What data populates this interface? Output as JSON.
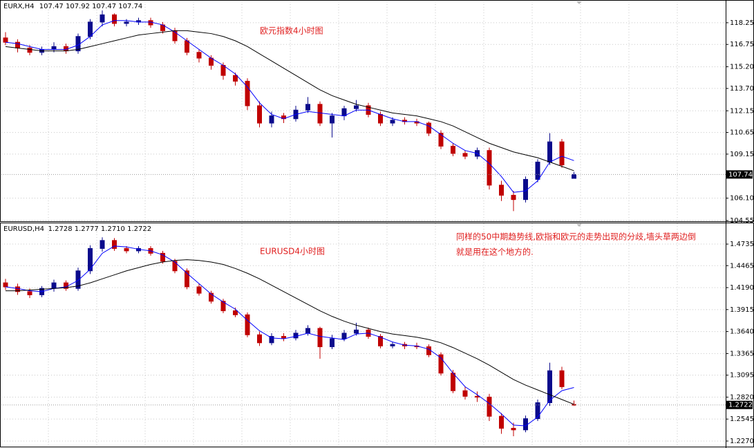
{
  "chart_data": [
    {
      "type": "candlestick",
      "title": "EURX,H4",
      "ohlc": "107.47 107.92 107.47 107.74",
      "up_color": "#0a0a8c",
      "down_color": "#c00000",
      "grid": true,
      "annotations": [
        "欧元指数4小时图"
      ],
      "last_price": 107.74,
      "ylim": [
        104.5,
        119.73
      ],
      "yticks": [
        118.25,
        116.75,
        {
          "value": 115.2,
          "label": "115.20"
        },
        {
          "value": 113.7,
          "label": "113.70"
        },
        112.15,
        110.65,
        109.15,
        {
          "value": 106.1,
          "label": "106.10"
        },
        104.55
      ],
      "open": [
        117.2,
        116.9,
        116.5,
        116.2,
        116.4,
        116.6,
        116.3,
        117.3,
        118.3,
        118.8,
        118.2,
        118.3,
        118.4,
        118.1,
        117.7,
        117.0,
        116.2,
        115.8,
        115.3,
        114.6,
        114.2,
        112.5,
        111.3,
        111.8,
        111.6,
        112.2,
        112.6,
        111.3,
        111.8,
        112.3,
        112.5,
        111.9,
        111.3,
        111.5,
        111.4,
        111.3,
        110.6,
        109.7,
        109.2,
        109.0,
        109.4,
        107.0,
        106.3,
        106.0,
        107.4,
        108.6,
        110.0,
        107.47
      ],
      "high": [
        117.6,
        117.1,
        116.7,
        116.6,
        116.9,
        116.8,
        117.5,
        118.5,
        119.1,
        118.9,
        118.5,
        118.6,
        118.6,
        118.3,
        117.9,
        117.2,
        116.4,
        116.0,
        115.5,
        114.8,
        114.4,
        112.8,
        112.1,
        112.0,
        112.5,
        113.1,
        112.8,
        112.0,
        112.5,
        112.9,
        112.7,
        112.1,
        111.7,
        111.7,
        111.6,
        111.4,
        110.8,
        109.9,
        109.4,
        109.6,
        109.6,
        107.3,
        106.6,
        107.6,
        108.8,
        110.6,
        110.2,
        107.92
      ],
      "low": [
        116.7,
        116.2,
        116.0,
        116.0,
        116.2,
        116.1,
        116.1,
        117.1,
        118.0,
        118.0,
        118.0,
        118.1,
        117.9,
        117.5,
        116.8,
        116.0,
        115.5,
        115.0,
        114.3,
        113.9,
        112.2,
        111.0,
        111.0,
        111.3,
        111.4,
        112.0,
        111.1,
        110.3,
        111.5,
        112.1,
        111.7,
        111.1,
        111.1,
        111.2,
        111.1,
        110.4,
        109.5,
        109.0,
        108.8,
        108.8,
        106.7,
        105.9,
        105.2,
        105.8,
        107.2,
        108.4,
        108.2,
        107.47
      ],
      "close": [
        116.9,
        116.5,
        116.2,
        116.4,
        116.6,
        116.3,
        117.3,
        118.3,
        118.8,
        118.2,
        118.3,
        118.4,
        118.1,
        117.7,
        117.0,
        116.2,
        115.8,
        115.3,
        114.6,
        114.2,
        112.5,
        111.3,
        111.8,
        111.6,
        112.2,
        112.6,
        111.3,
        111.8,
        112.3,
        112.5,
        111.9,
        111.3,
        111.5,
        111.4,
        111.3,
        110.6,
        109.7,
        109.2,
        109.0,
        109.4,
        107.0,
        106.3,
        106.0,
        107.4,
        108.6,
        110.0,
        108.4,
        107.74
      ],
      "series": [
        {
          "color": "#0000ff",
          "values": [
            116.9,
            116.8,
            116.6,
            116.4,
            116.4,
            116.4,
            116.7,
            117.3,
            118.1,
            118.4,
            118.4,
            118.3,
            118.3,
            118.1,
            117.6,
            117.0,
            116.4,
            115.8,
            115.3,
            114.7,
            113.8,
            112.7,
            111.9,
            111.6,
            111.9,
            112.1,
            112.0,
            111.9,
            111.8,
            112.2,
            112.2,
            111.9,
            111.6,
            111.4,
            111.4,
            111.1,
            110.5,
            109.9,
            109.4,
            109.2,
            108.5,
            107.6,
            106.5,
            106.6,
            107.3,
            108.6,
            109.0,
            108.7
          ]
        },
        {
          "color": "#000000",
          "values": [
            116.6,
            116.5,
            116.4,
            116.3,
            116.3,
            116.3,
            116.4,
            116.6,
            116.8,
            117.0,
            117.2,
            117.4,
            117.5,
            117.6,
            117.7,
            117.7,
            117.6,
            117.5,
            117.3,
            117.0,
            116.6,
            116.1,
            115.6,
            115.1,
            114.6,
            114.1,
            113.6,
            113.2,
            112.9,
            112.6,
            112.4,
            112.2,
            112.0,
            111.9,
            111.8,
            111.6,
            111.4,
            111.1,
            110.7,
            110.3,
            109.9,
            109.6,
            109.3,
            109.1,
            108.9,
            108.6,
            108.3,
            108.0
          ]
        }
      ]
    },
    {
      "type": "candlestick",
      "title": "EURUSD,H4",
      "ohlc": "1.2728 1.2777 1.2710 1.2722",
      "up_color": "#0a0a8c",
      "down_color": "#c00000",
      "grid": true,
      "annotations": [
        "EURUSD4小时图",
        "同样的50中期趋势线,欧指和欧元的走势出现的分歧,墙头草两边倒",
        "就是用在这个地方的."
      ],
      "last_price": 1.2722,
      "ylim": [
        1.2209,
        1.4995
      ],
      "yticks": [
        1.4735,
        1.4465,
        {
          "value": 1.419,
          "label": "1.4190"
        },
        1.3915,
        {
          "value": 1.364,
          "label": "1.3640"
        },
        1.3365,
        1.3095,
        {
          "value": 1.282,
          "label": "1.2820"
        },
        1.2545,
        {
          "value": 1.227,
          "label": "1.2270"
        }
      ],
      "open": [
        1.425,
        1.42,
        1.414,
        1.41,
        1.418,
        1.425,
        1.418,
        1.44,
        1.468,
        1.478,
        1.468,
        1.465,
        1.468,
        1.462,
        1.452,
        1.44,
        1.42,
        1.412,
        1.402,
        1.39,
        1.385,
        1.36,
        1.35,
        1.358,
        1.356,
        1.362,
        1.368,
        1.345,
        1.355,
        1.362,
        1.366,
        1.358,
        1.346,
        1.348,
        1.346,
        1.345,
        1.335,
        1.312,
        1.29,
        1.283,
        1.282,
        1.258,
        1.243,
        1.241,
        1.255,
        1.275,
        1.315,
        1.2728
      ],
      "high": [
        1.43,
        1.424,
        1.418,
        1.421,
        1.429,
        1.428,
        1.444,
        1.472,
        1.482,
        1.481,
        1.471,
        1.471,
        1.471,
        1.465,
        1.455,
        1.443,
        1.424,
        1.415,
        1.405,
        1.394,
        1.388,
        1.364,
        1.362,
        1.362,
        1.366,
        1.372,
        1.37,
        1.36,
        1.366,
        1.375,
        1.369,
        1.361,
        1.351,
        1.351,
        1.35,
        1.348,
        1.338,
        1.316,
        1.295,
        1.289,
        1.286,
        1.262,
        1.25,
        1.259,
        1.279,
        1.325,
        1.32,
        1.2777
      ],
      "low": [
        1.416,
        1.41,
        1.406,
        1.407,
        1.414,
        1.415,
        1.415,
        1.436,
        1.464,
        1.465,
        1.462,
        1.462,
        1.459,
        1.449,
        1.437,
        1.417,
        1.409,
        1.399,
        1.387,
        1.382,
        1.357,
        1.346,
        1.347,
        1.352,
        1.353,
        1.359,
        1.33,
        1.342,
        1.352,
        1.359,
        1.355,
        1.343,
        1.343,
        1.342,
        1.342,
        1.332,
        1.309,
        1.287,
        1.279,
        1.276,
        1.252,
        1.236,
        1.233,
        1.238,
        1.252,
        1.271,
        1.292,
        1.271
      ],
      "close": [
        1.42,
        1.414,
        1.41,
        1.418,
        1.425,
        1.418,
        1.44,
        1.468,
        1.478,
        1.468,
        1.465,
        1.468,
        1.462,
        1.452,
        1.44,
        1.42,
        1.412,
        1.402,
        1.39,
        1.385,
        1.36,
        1.35,
        1.358,
        1.356,
        1.362,
        1.368,
        1.345,
        1.355,
        1.362,
        1.366,
        1.358,
        1.346,
        1.348,
        1.346,
        1.345,
        1.335,
        1.312,
        1.29,
        1.283,
        1.282,
        1.258,
        1.243,
        1.241,
        1.255,
        1.275,
        1.315,
        1.295,
        1.2722
      ],
      "series": [
        {
          "color": "#0000ff",
          "values": [
            1.42,
            1.418,
            1.415,
            1.414,
            1.418,
            1.42,
            1.428,
            1.442,
            1.462,
            1.471,
            1.47,
            1.467,
            1.465,
            1.46,
            1.451,
            1.437,
            1.424,
            1.411,
            1.401,
            1.392,
            1.378,
            1.365,
            1.356,
            1.355,
            1.358,
            1.362,
            1.358,
            1.356,
            1.354,
            1.361,
            1.362,
            1.357,
            1.351,
            1.347,
            1.346,
            1.342,
            1.331,
            1.312,
            1.295,
            1.285,
            1.274,
            1.261,
            1.247,
            1.246,
            1.257,
            1.278,
            1.29,
            1.294
          ]
        },
        {
          "color": "#000000",
          "values": [
            1.415,
            1.415,
            1.416,
            1.417,
            1.418,
            1.419,
            1.421,
            1.425,
            1.43,
            1.435,
            1.44,
            1.444,
            1.448,
            1.451,
            1.453,
            1.454,
            1.453,
            1.451,
            1.448,
            1.443,
            1.437,
            1.43,
            1.422,
            1.414,
            1.406,
            1.398,
            1.39,
            1.383,
            1.377,
            1.372,
            1.368,
            1.364,
            1.361,
            1.359,
            1.357,
            1.354,
            1.35,
            1.344,
            1.337,
            1.33,
            1.322,
            1.313,
            1.304,
            1.297,
            1.291,
            1.285,
            1.279,
            1.273
          ]
        }
      ]
    }
  ]
}
